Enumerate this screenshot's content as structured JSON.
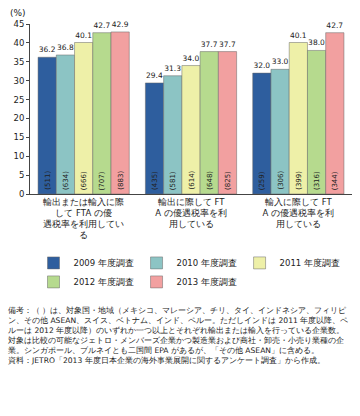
{
  "chart_data": {
    "type": "bar",
    "ylabel": "(%)",
    "categories": [
      "輸出または輸入に際して FTA の優遇税率を利用している",
      "輸出に際して FTA の優遇税率を利用している",
      "輸入に際して FTA の優遇税率を利用している"
    ],
    "series": [
      {
        "name": "2009 年度調査",
        "color": "#2e5e9e",
        "values": [
          36.2,
          29.4,
          32.0
        ],
        "value_labels": [
          "36.2",
          "29.4",
          "32.0"
        ],
        "n_labels": [
          "(511)",
          "(435)",
          "(259)"
        ]
      },
      {
        "name": "2010 年度調査",
        "color": "#8cc4c4",
        "values": [
          36.8,
          31.3,
          33.0
        ],
        "value_labels": [
          "36.8",
          "31.3",
          "33.0"
        ],
        "n_labels": [
          "(634)",
          "(581)",
          "(306)"
        ]
      },
      {
        "name": "2011 年度調査",
        "color": "#eef0a8",
        "values": [
          40.1,
          34.0,
          40.1
        ],
        "value_labels": [
          "40.1",
          "34.0",
          "40.1"
        ],
        "n_labels": [
          "(666)",
          "(614)",
          "(399)"
        ]
      },
      {
        "name": "2012 年度調査",
        "color": "#b6da8e",
        "values": [
          42.7,
          37.7,
          38.0
        ],
        "value_labels": [
          "42.7",
          "37.7",
          "38.0"
        ],
        "n_labels": [
          "(707)",
          "(648)",
          "(316)"
        ]
      },
      {
        "name": "2013 年度調査",
        "color": "#f2a0a0",
        "values": [
          42.9,
          37.7,
          42.7
        ],
        "value_labels": [
          "42.9",
          "37.7",
          "42.7"
        ],
        "n_labels": [
          "(883)",
          "(825)",
          "(344)"
        ]
      }
    ],
    "ylim": [
      0,
      45
    ],
    "yticks": [
      0,
      5,
      10,
      15,
      20,
      25,
      30,
      35,
      40,
      45
    ],
    "grid": false,
    "legend": "bottom",
    "data_labels": true,
    "notes": [
      "備考：（ ）は、対象国・地域（メキシコ、マレーシア、チリ、タイ、インドネシア、フィリピン、その他 ASEAN、スイス、ベトナム、インド、ペルー。ただしインドは 2011 年度以降、ペルーは 2012 年度以降）のいずれか一つ以上とそれぞれ輸出または輸入を行っている企業数。対象は比較の可能なジェトロ・メンバーズ企業かつ製造業および商社・卸売・小売り業種の企業。シンガポール、ブルネイとも二国間 EPA があるが、「その他 ASEAN」に含める。",
      "資料：JETRO「2013 年度日本企業の海外事業展開に関するアンケート調査」から作成。"
    ]
  }
}
